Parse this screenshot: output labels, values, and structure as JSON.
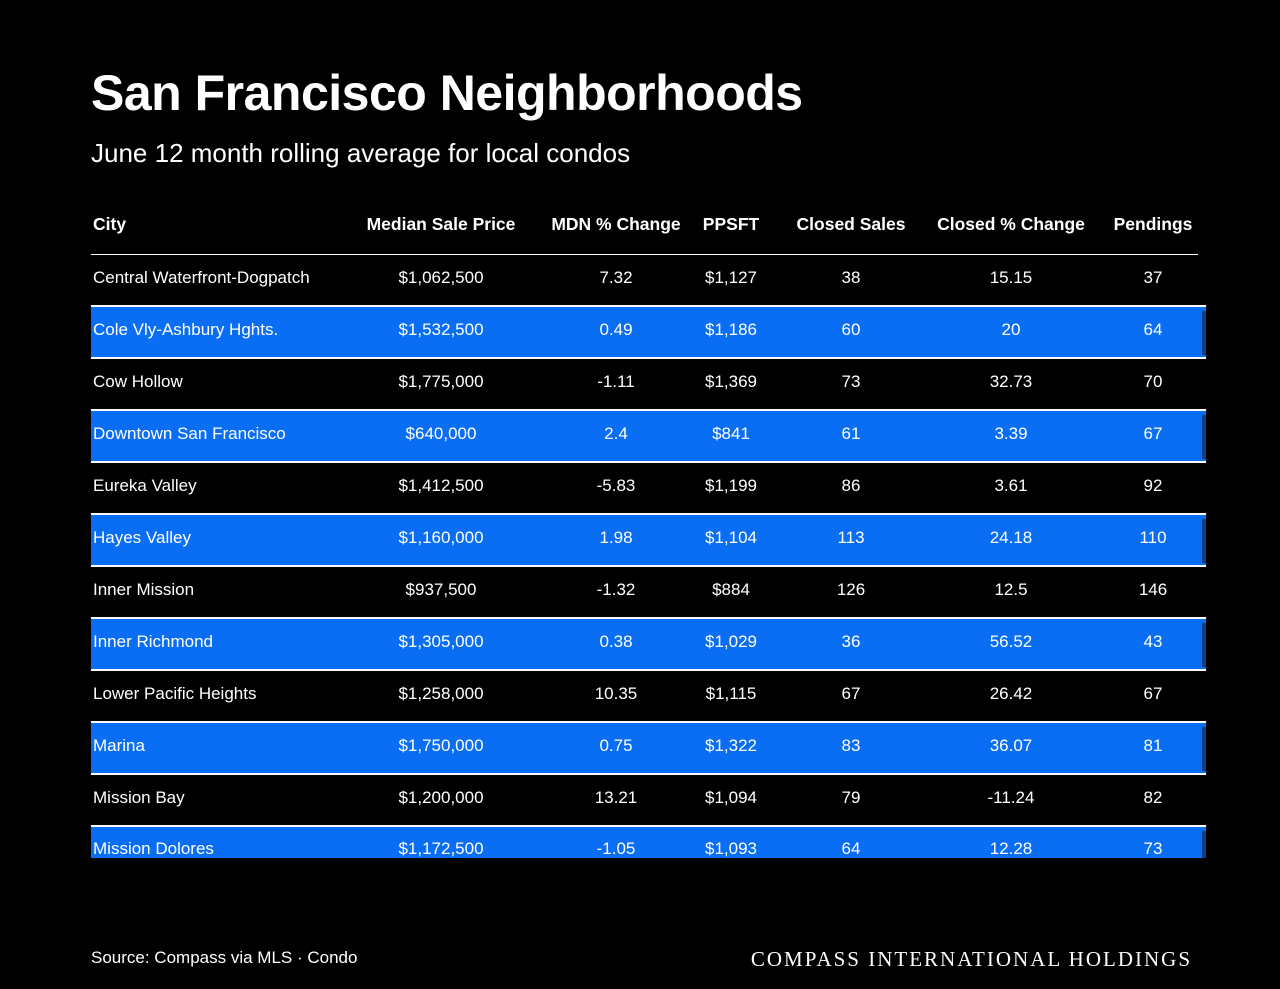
{
  "title": "San Francisco Neighborhoods",
  "subtitle": "June 12 month rolling average for local condos",
  "colors": {
    "background": "#000000",
    "highlight_row": "#0a6ef5",
    "text": "#ffffff"
  },
  "table": {
    "headers": {
      "city": "City",
      "median_sale_price": "Median Sale Price",
      "mdn_change": "MDN % Change",
      "ppsft": "PPSFT",
      "closed_sales": "Closed Sales",
      "closed_change": "Closed % Change",
      "pendings": "Pendings"
    },
    "rows": [
      {
        "city": "Central Waterfront-Dogpatch",
        "median_sale_price": "$1,062,500",
        "mdn_change": "7.32",
        "ppsft": "$1,127",
        "closed_sales": "38",
        "closed_change": "15.15",
        "pendings": "37",
        "highlighted": false
      },
      {
        "city": "Cole Vly-Ashbury Hghts.",
        "median_sale_price": "$1,532,500",
        "mdn_change": "0.49",
        "ppsft": "$1,186",
        "closed_sales": "60",
        "closed_change": "20",
        "pendings": "64",
        "highlighted": true
      },
      {
        "city": "Cow Hollow",
        "median_sale_price": "$1,775,000",
        "mdn_change": "-1.11",
        "ppsft": "$1,369",
        "closed_sales": "73",
        "closed_change": "32.73",
        "pendings": "70",
        "highlighted": false
      },
      {
        "city": "Downtown San Francisco",
        "median_sale_price": "$640,000",
        "mdn_change": "2.4",
        "ppsft": "$841",
        "closed_sales": "61",
        "closed_change": "3.39",
        "pendings": "67",
        "highlighted": true
      },
      {
        "city": "Eureka Valley",
        "median_sale_price": "$1,412,500",
        "mdn_change": "-5.83",
        "ppsft": "$1,199",
        "closed_sales": "86",
        "closed_change": "3.61",
        "pendings": "92",
        "highlighted": false
      },
      {
        "city": "Hayes Valley",
        "median_sale_price": "$1,160,000",
        "mdn_change": "1.98",
        "ppsft": "$1,104",
        "closed_sales": "113",
        "closed_change": "24.18",
        "pendings": "110",
        "highlighted": true
      },
      {
        "city": "Inner Mission",
        "median_sale_price": "$937,500",
        "mdn_change": "-1.32",
        "ppsft": "$884",
        "closed_sales": "126",
        "closed_change": "12.5",
        "pendings": "146",
        "highlighted": false
      },
      {
        "city": "Inner Richmond",
        "median_sale_price": "$1,305,000",
        "mdn_change": "0.38",
        "ppsft": "$1,029",
        "closed_sales": "36",
        "closed_change": "56.52",
        "pendings": "43",
        "highlighted": true
      },
      {
        "city": "Lower Pacific Heights",
        "median_sale_price": "$1,258,000",
        "mdn_change": "10.35",
        "ppsft": "$1,115",
        "closed_sales": "67",
        "closed_change": "26.42",
        "pendings": "67",
        "highlighted": false
      },
      {
        "city": "Marina",
        "median_sale_price": "$1,750,000",
        "mdn_change": "0.75",
        "ppsft": "$1,322",
        "closed_sales": "83",
        "closed_change": "36.07",
        "pendings": "81",
        "highlighted": true
      },
      {
        "city": "Mission Bay",
        "median_sale_price": "$1,200,000",
        "mdn_change": "13.21",
        "ppsft": "$1,094",
        "closed_sales": "79",
        "closed_change": "-11.24",
        "pendings": "82",
        "highlighted": false
      },
      {
        "city": "Mission Dolores",
        "median_sale_price": "$1,172,500",
        "mdn_change": "-1.05",
        "ppsft": "$1,093",
        "closed_sales": "64",
        "closed_change": "12.28",
        "pendings": "73",
        "highlighted": true
      }
    ]
  },
  "footer": {
    "source": "Source: Compass via MLS · Condo",
    "brand": "COMPASS INTERNATIONAL HOLDINGS"
  }
}
